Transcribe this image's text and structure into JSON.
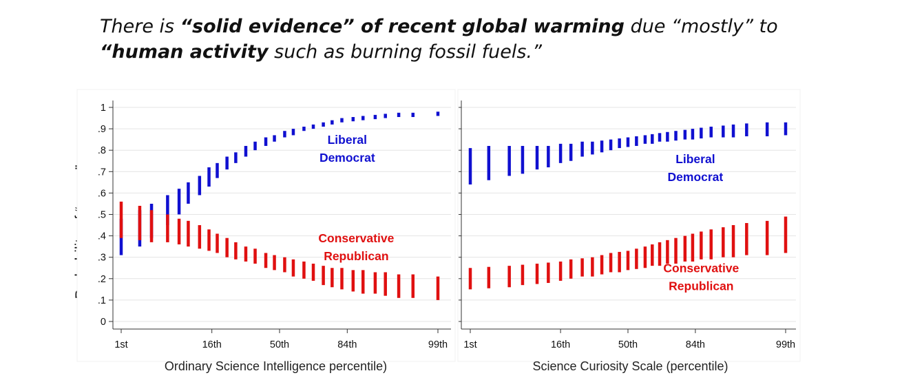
{
  "headline": {
    "p1": "There is ",
    "b1": "“solid evidence” of recent global warming",
    "p2": " due “mostly” to ",
    "b2": "“human activity",
    "p3": " such as burning fossil fuels.”"
  },
  "colors": {
    "liberal": "#1010d0",
    "conservative": "#e01010",
    "grid": "#e4e4e4",
    "axis": "#333333"
  },
  "chart_data": {
    "type": "range-bar",
    "ylabel": "Probability of “agree”",
    "ylim": [
      0,
      1
    ],
    "yticks": [
      {
        "v": 0,
        "label": "0"
      },
      {
        "v": 0.1,
        "label": ".1"
      },
      {
        "v": 0.2,
        "label": ".2"
      },
      {
        "v": 0.3,
        "label": ".3"
      },
      {
        "v": 0.4,
        "label": ".4"
      },
      {
        "v": 0.5,
        "label": ".5"
      },
      {
        "v": 0.6,
        "label": ".6"
      },
      {
        "v": 0.7,
        "label": ".7"
      },
      {
        "v": 0.8,
        "label": ".8"
      },
      {
        "v": 0.9,
        "label": ".9"
      },
      {
        "v": 1,
        "label": "1"
      }
    ],
    "xticks": [
      {
        "p": 1,
        "label": "1st"
      },
      {
        "p": 16,
        "label": "16th"
      },
      {
        "p": 50,
        "label": "50th"
      },
      {
        "p": 84,
        "label": "84th"
      },
      {
        "p": 99,
        "label": "99th"
      }
    ],
    "panels": [
      {
        "xlabel": "Ordinary Science Intelligence percentile)",
        "x": [
          1,
          2,
          3,
          5,
          7,
          9,
          12,
          15,
          18,
          22,
          26,
          31,
          36,
          42,
          47,
          53,
          58,
          64,
          69,
          74,
          78,
          82,
          86,
          89,
          92,
          94,
          96,
          97.5,
          99
        ],
        "series": [
          {
            "name": "Liberal Democrat",
            "color_key": "liberal",
            "low": [
              0.31,
              0.35,
              0.39,
              0.45,
              0.5,
              0.55,
              0.59,
              0.63,
              0.67,
              0.71,
              0.74,
              0.77,
              0.8,
              0.82,
              0.84,
              0.86,
              0.87,
              0.89,
              0.9,
              0.91,
              0.92,
              0.93,
              0.935,
              0.94,
              0.945,
              0.95,
              0.955,
              0.955,
              0.96
            ],
            "high": [
              0.48,
              0.52,
              0.55,
              0.59,
              0.62,
              0.65,
              0.68,
              0.72,
              0.74,
              0.77,
              0.79,
              0.82,
              0.84,
              0.86,
              0.87,
              0.89,
              0.9,
              0.91,
              0.92,
              0.93,
              0.94,
              0.95,
              0.955,
              0.96,
              0.965,
              0.97,
              0.975,
              0.975,
              0.98
            ]
          },
          {
            "name": "Conservative Republican",
            "color_key": "conservative",
            "low": [
              0.39,
              0.38,
              0.37,
              0.37,
              0.36,
              0.35,
              0.34,
              0.33,
              0.32,
              0.3,
              0.29,
              0.28,
              0.27,
              0.25,
              0.24,
              0.23,
              0.21,
              0.2,
              0.19,
              0.17,
              0.16,
              0.15,
              0.14,
              0.13,
              0.13,
              0.12,
              0.11,
              0.11,
              0.1
            ],
            "high": [
              0.56,
              0.54,
              0.52,
              0.5,
              0.48,
              0.47,
              0.45,
              0.43,
              0.41,
              0.39,
              0.37,
              0.35,
              0.34,
              0.32,
              0.31,
              0.3,
              0.29,
              0.28,
              0.27,
              0.26,
              0.25,
              0.25,
              0.24,
              0.24,
              0.23,
              0.23,
              0.22,
              0.22,
              0.21
            ]
          }
        ],
        "labels": [
          {
            "color_key": "liberal",
            "lines": [
              "Liberal",
              "Democrat"
            ],
            "at_x": 84,
            "at_y": 0.83
          },
          {
            "color_key": "conservative",
            "lines": [
              "Conservative",
              "Republican"
            ],
            "at_x": 87,
            "at_y": 0.37
          }
        ]
      },
      {
        "xlabel": "Science Curiosity Scale (percentile)",
        "x": [
          1,
          2,
          4,
          6,
          9,
          12,
          16,
          20,
          25,
          30,
          35,
          40,
          45,
          50,
          55,
          60,
          64,
          68,
          72,
          76,
          80,
          83,
          86,
          89,
          92,
          94,
          96,
          98,
          99
        ],
        "series": [
          {
            "name": "Liberal Democrat",
            "color_key": "liberal",
            "low": [
              0.64,
              0.66,
              0.68,
              0.69,
              0.71,
              0.72,
              0.74,
              0.75,
              0.77,
              0.78,
              0.79,
              0.8,
              0.81,
              0.815,
              0.82,
              0.83,
              0.83,
              0.84,
              0.84,
              0.845,
              0.85,
              0.85,
              0.855,
              0.86,
              0.86,
              0.86,
              0.865,
              0.865,
              0.87
            ],
            "high": [
              0.81,
              0.82,
              0.82,
              0.82,
              0.82,
              0.82,
              0.83,
              0.83,
              0.84,
              0.84,
              0.845,
              0.85,
              0.855,
              0.86,
              0.865,
              0.87,
              0.875,
              0.88,
              0.885,
              0.89,
              0.895,
              0.9,
              0.905,
              0.91,
              0.915,
              0.92,
              0.925,
              0.93,
              0.93
            ]
          },
          {
            "name": "Conservative Republican",
            "color_key": "conservative",
            "low": [
              0.15,
              0.155,
              0.16,
              0.17,
              0.175,
              0.18,
              0.19,
              0.2,
              0.21,
              0.21,
              0.22,
              0.23,
              0.23,
              0.24,
              0.245,
              0.25,
              0.26,
              0.26,
              0.27,
              0.27,
              0.28,
              0.28,
              0.29,
              0.29,
              0.3,
              0.3,
              0.31,
              0.31,
              0.32
            ],
            "high": [
              0.25,
              0.255,
              0.26,
              0.265,
              0.27,
              0.275,
              0.28,
              0.29,
              0.295,
              0.3,
              0.31,
              0.32,
              0.325,
              0.33,
              0.34,
              0.35,
              0.36,
              0.37,
              0.38,
              0.39,
              0.4,
              0.41,
              0.42,
              0.43,
              0.44,
              0.45,
              0.46,
              0.47,
              0.49
            ]
          }
        ],
        "labels": [
          {
            "color_key": "liberal",
            "lines": [
              "Liberal",
              "Democrat"
            ],
            "at_x": 84,
            "at_y": 0.74
          },
          {
            "color_key": "conservative",
            "lines": [
              "Conservative",
              "Republican"
            ],
            "at_x": 86,
            "at_y": 0.23
          }
        ]
      }
    ]
  }
}
